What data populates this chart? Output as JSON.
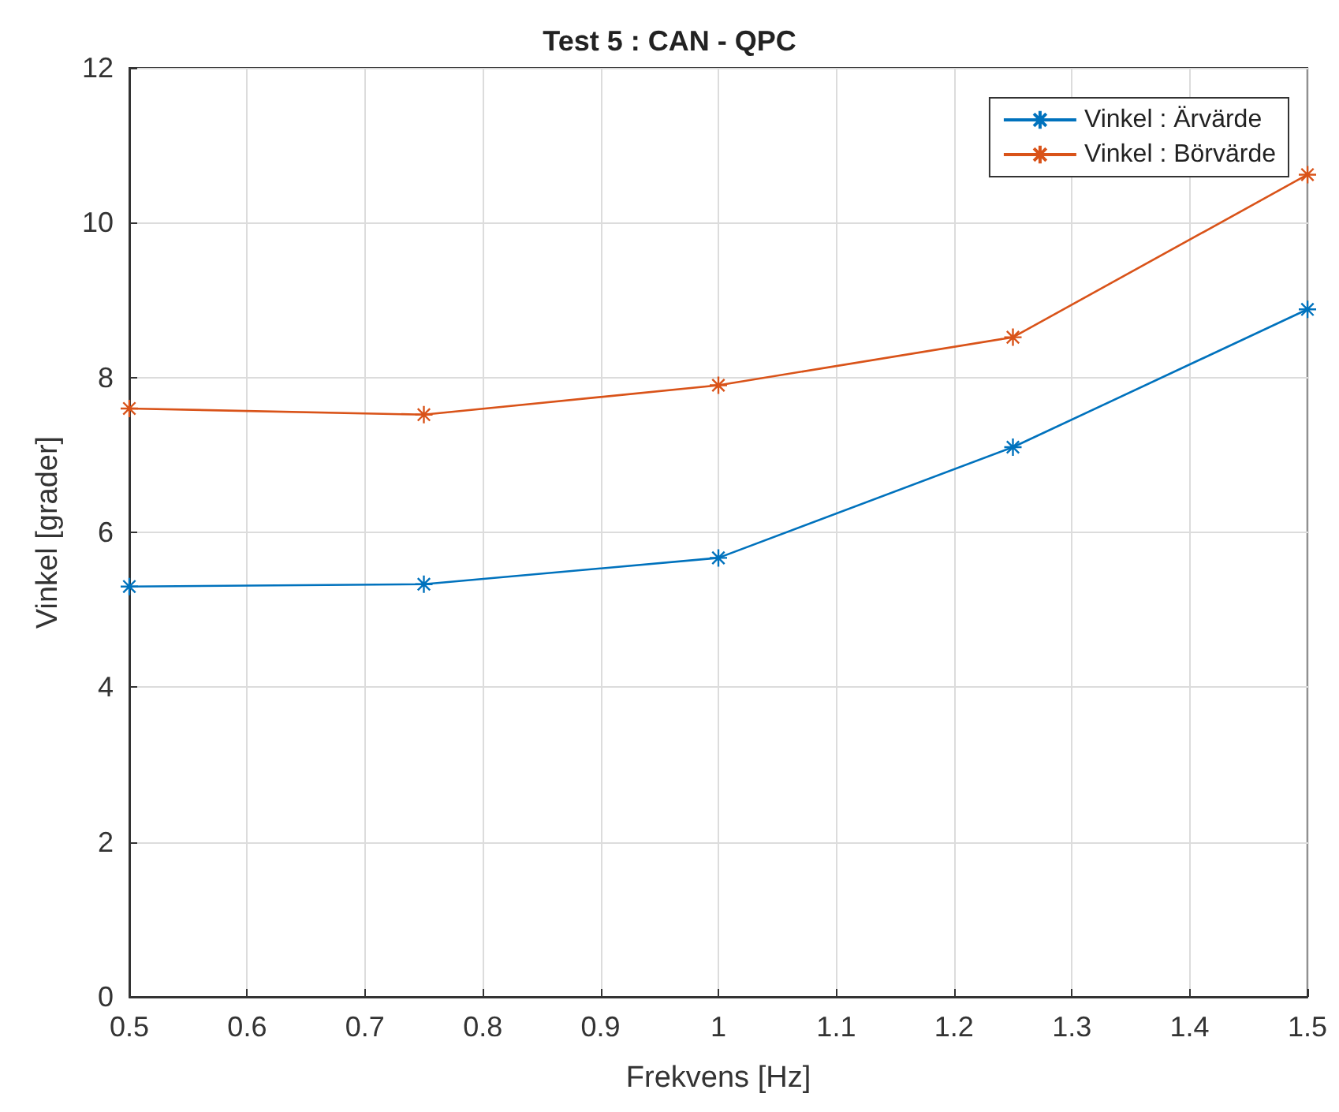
{
  "chart_data": {
    "type": "line",
    "title": "Test 5 : CAN - QPC",
    "xlabel": "Frekvens [Hz]",
    "ylabel": "Vinkel [grader]",
    "x": [
      0.5,
      0.75,
      1,
      1.25,
      1.5
    ],
    "series": [
      {
        "name": "Vinkel : Ärvärde",
        "color": "#0072bd",
        "values": [
          5.3,
          5.33,
          5.67,
          7.1,
          8.88
        ]
      },
      {
        "name": "Vinkel : Börvärde",
        "color": "#d95319",
        "values": [
          7.6,
          7.52,
          7.9,
          8.52,
          10.62
        ]
      }
    ],
    "xlim": [
      0.5,
      1.5
    ],
    "xticks": [
      0.5,
      0.6,
      0.7,
      0.8,
      0.9,
      1,
      1.1,
      1.2,
      1.3,
      1.4,
      1.5
    ],
    "ylim": [
      0,
      12
    ],
    "yticks": [
      0,
      2,
      4,
      6,
      8,
      10,
      12
    ],
    "grid": true,
    "legend": "top right",
    "marker": "cross",
    "line_style": "solid"
  }
}
